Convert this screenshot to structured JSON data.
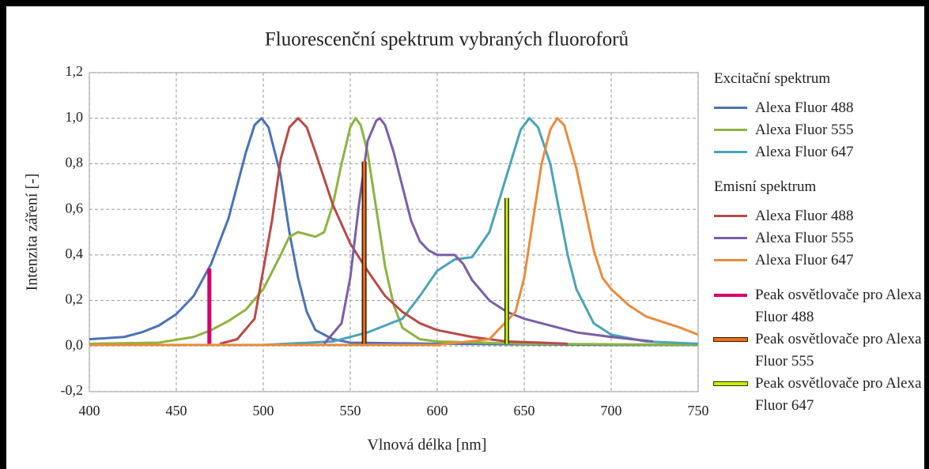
{
  "chart_data": {
    "type": "line",
    "title": "Fluorescenční spektrum vybraných fluoroforů",
    "xlabel": "Vlnová délka [nm]",
    "ylabel": "Intenzita záření [-]",
    "xlim": [
      400,
      750
    ],
    "xticks": [
      400,
      450,
      500,
      550,
      600,
      650,
      700,
      750
    ],
    "ylim": [
      -0.2,
      1.2
    ],
    "yticks": [
      {
        "value": -0.2,
        "label": "-0,2"
      },
      {
        "value": 0,
        "label": "0,0"
      },
      {
        "value": 0.2,
        "label": "0,2"
      },
      {
        "value": 0.4,
        "label": "0,4"
      },
      {
        "value": 0.6,
        "label": "0,6"
      },
      {
        "value": 0.8,
        "label": "0,8"
      },
      {
        "value": 1.0,
        "label": "1,0"
      },
      {
        "value": 1.2,
        "label": "1,2"
      }
    ],
    "grid": true,
    "legend": "right",
    "groups": [
      {
        "title": "Excitační spektrum",
        "series": [
          {
            "name": "Alexa Fluor 488",
            "color": "#4a73b5",
            "x": [
              400,
              420,
              430,
              440,
              450,
              460,
              470,
              480,
              490,
              495,
              499,
              503,
              510,
              515,
              520,
              525,
              530,
              540,
              550,
              600,
              700,
              750
            ],
            "values": [
              0.03,
              0.04,
              0.06,
              0.09,
              0.14,
              0.22,
              0.36,
              0.56,
              0.85,
              0.97,
              1.0,
              0.96,
              0.75,
              0.5,
              0.3,
              0.15,
              0.07,
              0.03,
              0.015,
              0.01,
              0.005,
              0.005
            ]
          },
          {
            "name": "Alexa Fluor 555",
            "color": "#8db43e",
            "x": [
              400,
              440,
              460,
              470,
              480,
              490,
              500,
              510,
              515,
              520,
              525,
              530,
              535,
              540,
              545,
              550,
              553,
              556,
              560,
              565,
              570,
              575,
              580,
              590,
              600,
              650,
              750
            ],
            "values": [
              0.01,
              0.015,
              0.04,
              0.07,
              0.11,
              0.16,
              0.25,
              0.4,
              0.48,
              0.5,
              0.49,
              0.48,
              0.5,
              0.62,
              0.8,
              0.96,
              1.0,
              0.97,
              0.85,
              0.6,
              0.35,
              0.18,
              0.08,
              0.03,
              0.02,
              0.01,
              0.005
            ]
          },
          {
            "name": "Alexa Fluor 647",
            "color": "#4aa3b8",
            "x": [
              500,
              540,
              560,
              580,
              590,
              600,
              610,
              620,
              630,
              640,
              648,
              653,
              658,
              665,
              670,
              675,
              680,
              690,
              700,
              720,
              750
            ],
            "values": [
              0.005,
              0.02,
              0.06,
              0.12,
              0.22,
              0.33,
              0.38,
              0.39,
              0.5,
              0.75,
              0.95,
              1.0,
              0.96,
              0.8,
              0.6,
              0.4,
              0.25,
              0.1,
              0.05,
              0.02,
              0.01
            ]
          }
        ]
      },
      {
        "title": "Emisní spektrum",
        "series": [
          {
            "name": "Alexa Fluor 488",
            "color": "#b84a47",
            "x": [
              475,
              485,
              495,
              505,
              510,
              515,
              520,
              525,
              530,
              540,
              550,
              560,
              570,
              580,
              590,
              600,
              620,
              640,
              660,
              675
            ],
            "values": [
              0.01,
              0.03,
              0.12,
              0.55,
              0.82,
              0.96,
              1.0,
              0.96,
              0.85,
              0.62,
              0.45,
              0.33,
              0.22,
              0.15,
              0.1,
              0.07,
              0.04,
              0.02,
              0.015,
              0.01
            ]
          },
          {
            "name": "Alexa Fluor 555",
            "color": "#7b5ea7",
            "x": [
              535,
              545,
              550,
              555,
              560,
              565,
              567,
              570,
              575,
              580,
              585,
              590,
              595,
              600,
              610,
              615,
              620,
              630,
              640,
              650,
              660,
              670,
              680,
              700,
              724
            ],
            "values": [
              0.01,
              0.1,
              0.3,
              0.62,
              0.9,
              0.99,
              1.0,
              0.97,
              0.85,
              0.7,
              0.55,
              0.46,
              0.42,
              0.4,
              0.4,
              0.36,
              0.29,
              0.2,
              0.15,
              0.12,
              0.1,
              0.08,
              0.06,
              0.04,
              0.02
            ]
          },
          {
            "name": "Alexa Fluor 647",
            "color": "#e98c3c",
            "x": [
              400,
              600,
              630,
              645,
              650,
              655,
              660,
              665,
              669,
              673,
              680,
              685,
              690,
              695,
              700,
              710,
              720,
              740,
              750
            ],
            "values": [
              0.005,
              0.005,
              0.03,
              0.15,
              0.3,
              0.55,
              0.8,
              0.95,
              1.0,
              0.97,
              0.78,
              0.6,
              0.42,
              0.3,
              0.25,
              0.18,
              0.13,
              0.08,
              0.05
            ]
          }
        ]
      },
      {
        "series": [
          {
            "name": "Peak osvětlovače pro Alexa Fluor 488",
            "color": "#d6006e",
            "x": [
              469,
              469
            ],
            "values": [
              0.01,
              0.34
            ]
          },
          {
            "name": "Peak osvětlovače pro Alexa Fluor 555",
            "color": "#e8701a",
            "outline": "#3a1a00",
            "x": [
              558,
              558
            ],
            "values": [
              0.01,
              0.81
            ]
          },
          {
            "name": "Peak osvětlovače pro Alexa Fluor 647",
            "color": "#c8f000",
            "outline": "#2a3300",
            "x": [
              640,
              640
            ],
            "values": [
              0.01,
              0.65
            ]
          }
        ]
      }
    ]
  }
}
